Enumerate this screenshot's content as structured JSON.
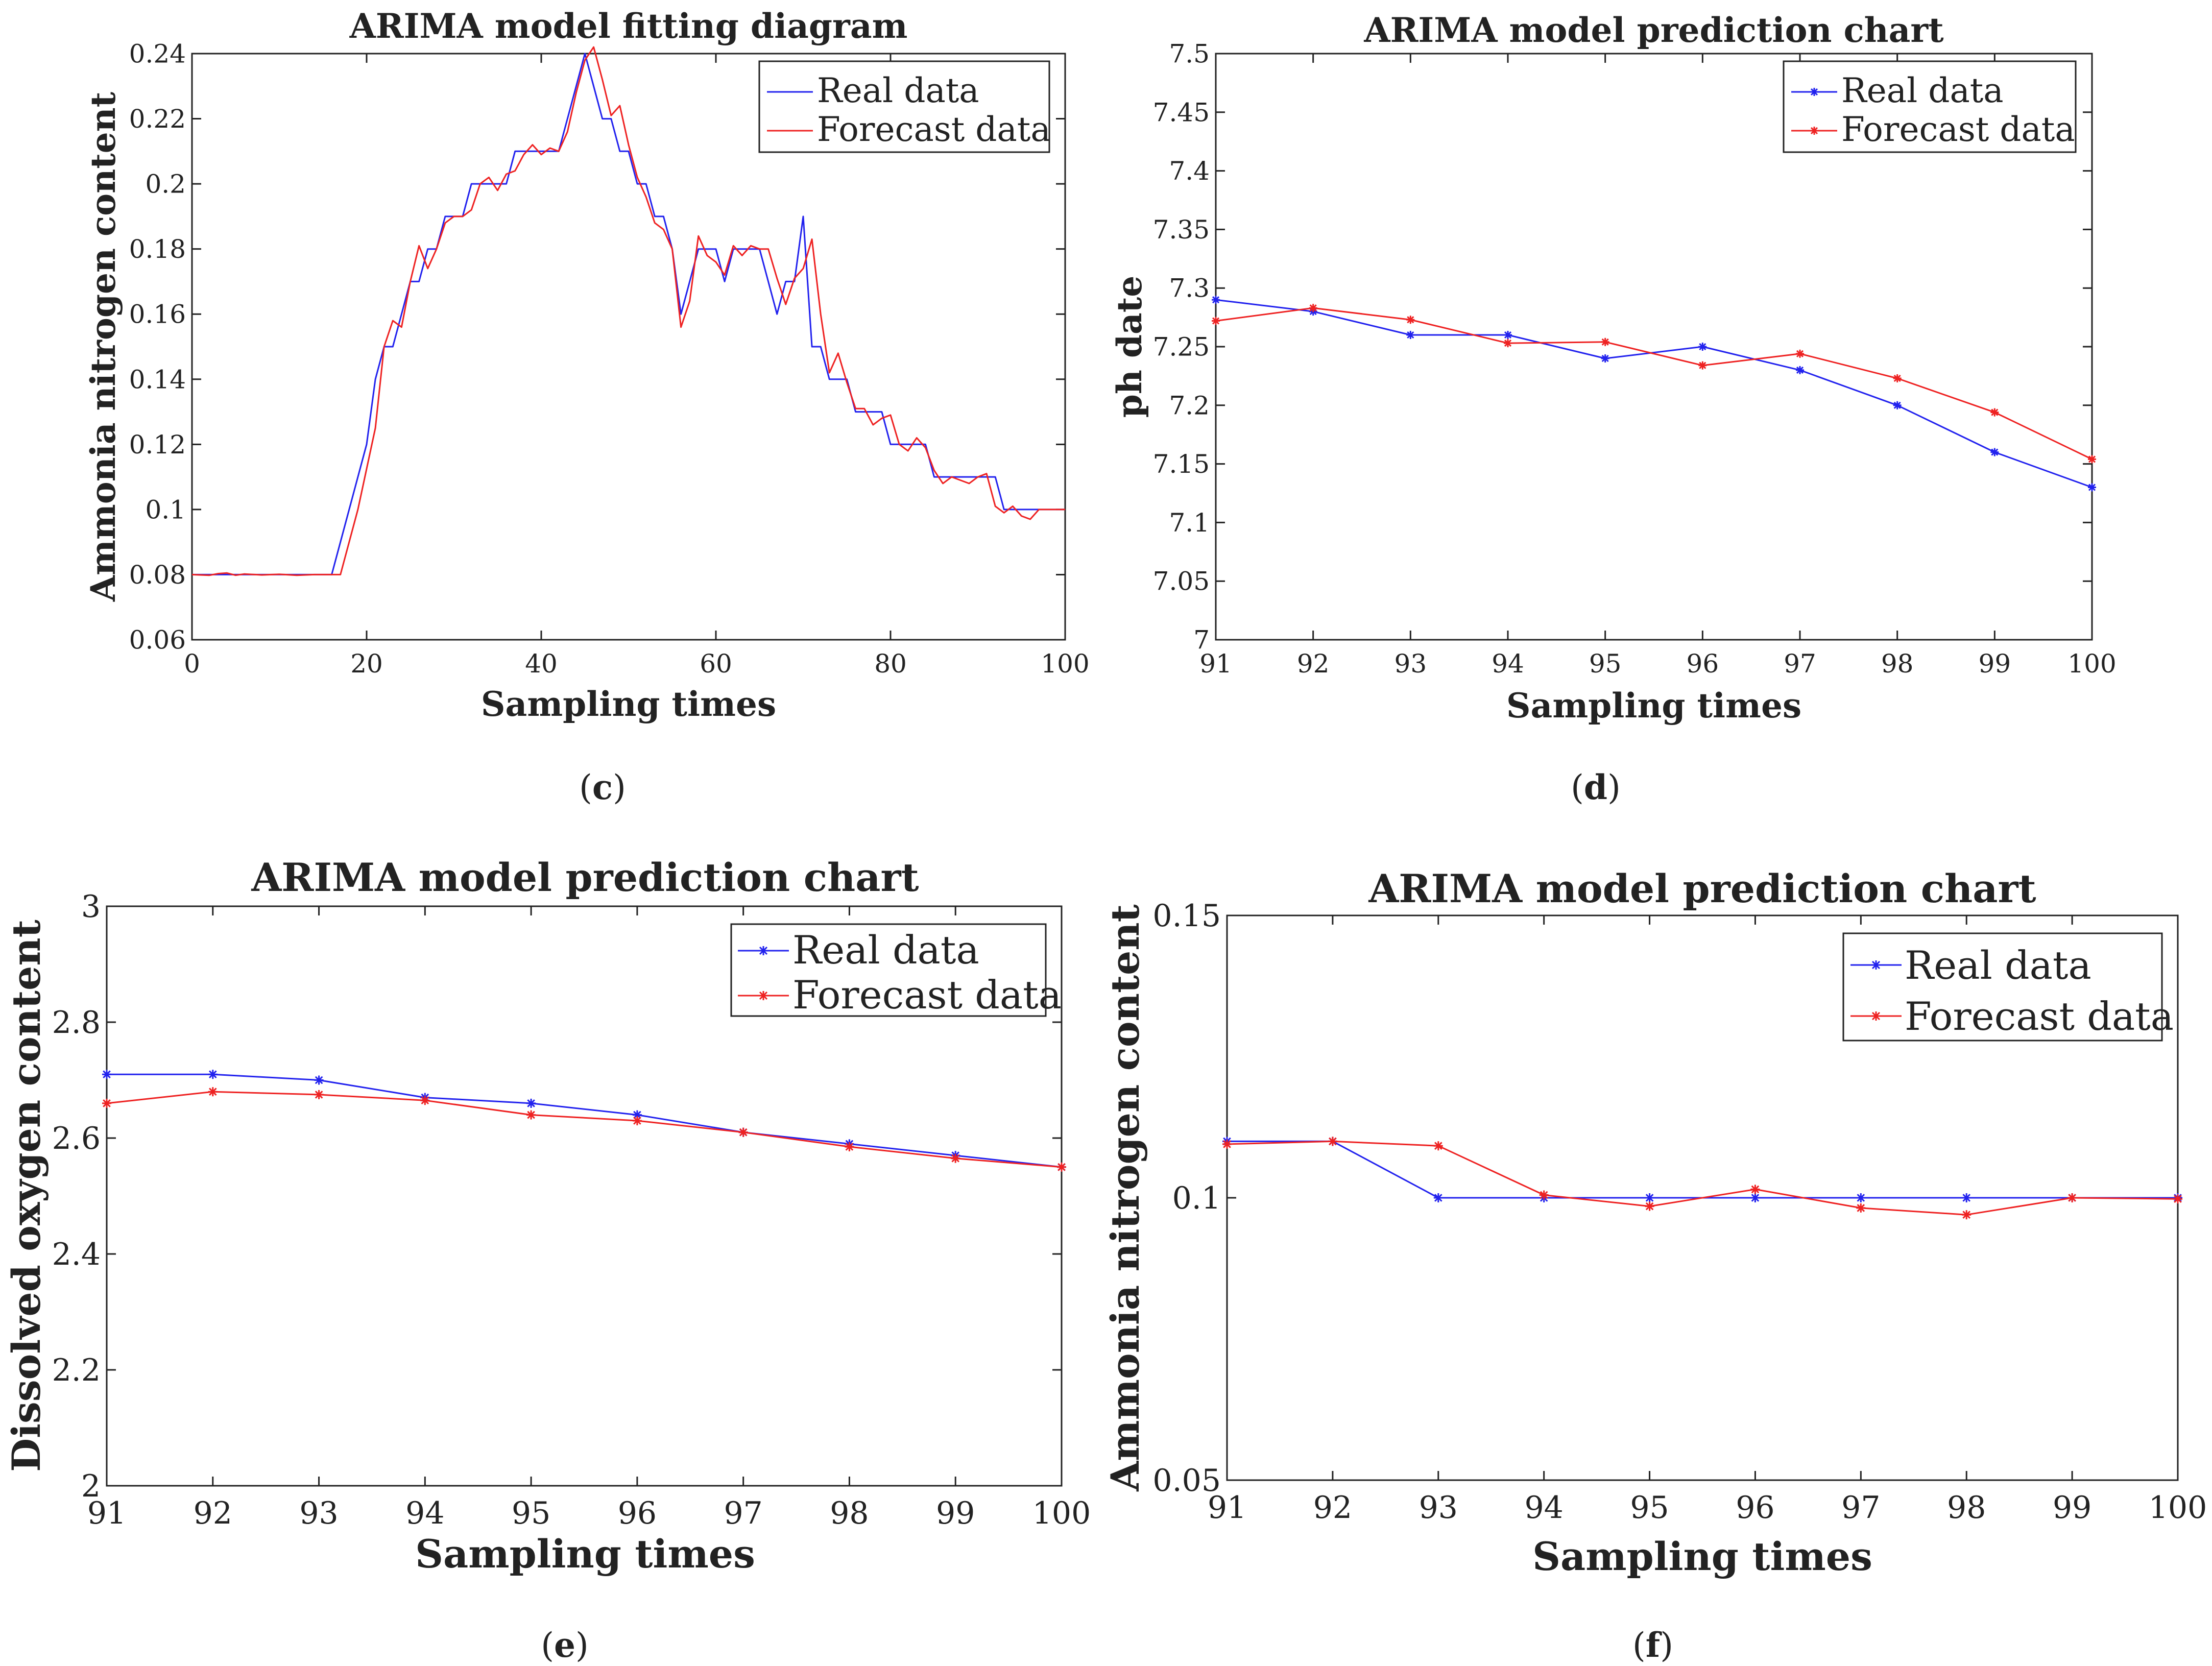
{
  "colors": {
    "real": "#2222ee",
    "forecast": "#ee2222",
    "axis": "#222222",
    "background": "#ffffff"
  },
  "chart_data": [
    {
      "panel": "c",
      "type": "line",
      "title": "ARIMA model fitting diagram",
      "xlabel": "Sampling times",
      "ylabel": "Ammonia nitrogen content",
      "xlim": [
        0,
        100
      ],
      "ylim": [
        0.06,
        0.24
      ],
      "xticks": [
        0,
        20,
        40,
        60,
        80,
        100
      ],
      "yticks": [
        0.06,
        0.08,
        0.1,
        0.12,
        0.14,
        0.16,
        0.18,
        0.2,
        0.22,
        0.24
      ],
      "ytick_labels": [
        "0.06",
        "0.08",
        "0.1",
        "0.12",
        "0.14",
        "0.16",
        "0.18",
        "0.2",
        "0.22",
        "0.24"
      ],
      "legend": "top-right",
      "markers": false,
      "series": [
        {
          "name": "Real data",
          "color": "#2222ee",
          "x": [
            0,
            2,
            3,
            4,
            5,
            6,
            8,
            10,
            12,
            14,
            16,
            18,
            20,
            21,
            22,
            23,
            24,
            25,
            26,
            27,
            28,
            29,
            30,
            31,
            32,
            33,
            34,
            35,
            36,
            37,
            38,
            39,
            40,
            41,
            42,
            43,
            44,
            45,
            46,
            47,
            48,
            49,
            50,
            51,
            52,
            53,
            54,
            55,
            56,
            57,
            58,
            59,
            60,
            61,
            62,
            63,
            64,
            65,
            66,
            67,
            68,
            69,
            70,
            71,
            72,
            73,
            74,
            75,
            76,
            77,
            78,
            79,
            80,
            81,
            82,
            83,
            84,
            85,
            86,
            87,
            88,
            89,
            90,
            91,
            92,
            93,
            94,
            95,
            96,
            97,
            98,
            99,
            100
          ],
          "y": [
            0.08,
            0.08,
            0.08,
            0.08,
            0.08,
            0.08,
            0.08,
            0.08,
            0.08,
            0.08,
            0.08,
            0.1,
            0.12,
            0.14,
            0.15,
            0.15,
            0.16,
            0.17,
            0.17,
            0.18,
            0.18,
            0.19,
            0.19,
            0.19,
            0.2,
            0.2,
            0.2,
            0.2,
            0.2,
            0.21,
            0.21,
            0.21,
            0.21,
            0.21,
            0.21,
            0.22,
            0.23,
            0.24,
            0.23,
            0.22,
            0.22,
            0.21,
            0.21,
            0.2,
            0.2,
            0.19,
            0.19,
            0.18,
            0.16,
            0.17,
            0.18,
            0.18,
            0.18,
            0.17,
            0.18,
            0.18,
            0.18,
            0.18,
            0.17,
            0.16,
            0.17,
            0.17,
            0.19,
            0.15,
            0.15,
            0.14,
            0.14,
            0.14,
            0.13,
            0.13,
            0.13,
            0.13,
            0.12,
            0.12,
            0.12,
            0.12,
            0.12,
            0.11,
            0.11,
            0.11,
            0.11,
            0.11,
            0.11,
            0.11,
            0.11,
            0.1,
            0.1,
            0.1,
            0.1,
            0.1,
            0.1,
            0.1,
            0.1
          ]
        },
        {
          "name": "Forecast data",
          "color": "#ee2222",
          "x": [
            0,
            2,
            3,
            4,
            5,
            6,
            8,
            10,
            12,
            14,
            17,
            19,
            21,
            22,
            23,
            24,
            25,
            26,
            27,
            28,
            29,
            30,
            31,
            32,
            33,
            34,
            35,
            36,
            37,
            38,
            39,
            40,
            41,
            42,
            43,
            44,
            45,
            46,
            47,
            48,
            49,
            50,
            51,
            52,
            53,
            54,
            55,
            56,
            57,
            58,
            59,
            60,
            61,
            62,
            63,
            64,
            65,
            66,
            67,
            68,
            69,
            70,
            71,
            72,
            73,
            74,
            75,
            76,
            77,
            78,
            79,
            80,
            81,
            82,
            83,
            84,
            85,
            86,
            87,
            88,
            89,
            90,
            91,
            92,
            93,
            94,
            95,
            96,
            97,
            98,
            99,
            100
          ],
          "y": [
            0.08,
            0.0798,
            0.0803,
            0.0805,
            0.0798,
            0.0802,
            0.0799,
            0.0801,
            0.0798,
            0.08,
            0.08,
            0.1,
            0.125,
            0.15,
            0.158,
            0.156,
            0.17,
            0.181,
            0.174,
            0.18,
            0.188,
            0.19,
            0.19,
            0.192,
            0.2,
            0.202,
            0.198,
            0.203,
            0.204,
            0.209,
            0.212,
            0.209,
            0.211,
            0.21,
            0.216,
            0.228,
            0.238,
            0.242,
            0.232,
            0.221,
            0.224,
            0.212,
            0.202,
            0.196,
            0.188,
            0.186,
            0.18,
            0.156,
            0.164,
            0.184,
            0.178,
            0.176,
            0.172,
            0.181,
            0.178,
            0.181,
            0.18,
            0.18,
            0.171,
            0.163,
            0.171,
            0.174,
            0.183,
            0.16,
            0.142,
            0.148,
            0.139,
            0.131,
            0.131,
            0.126,
            0.128,
            0.129,
            0.12,
            0.118,
            0.122,
            0.119,
            0.112,
            0.108,
            0.11,
            0.109,
            0.108,
            0.11,
            0.111,
            0.101,
            0.099,
            0.101,
            0.098,
            0.097,
            0.1,
            0.1,
            0.1,
            0.1
          ]
        }
      ]
    },
    {
      "panel": "d",
      "type": "line",
      "title": "ARIMA model prediction chart",
      "xlabel": "Sampling times",
      "ylabel": "ph date",
      "xlim": [
        91,
        100
      ],
      "ylim": [
        7,
        7.5
      ],
      "xticks": [
        91,
        92,
        93,
        94,
        95,
        96,
        97,
        98,
        99,
        100
      ],
      "yticks": [
        7,
        7.05,
        7.1,
        7.15,
        7.2,
        7.25,
        7.3,
        7.35,
        7.4,
        7.45,
        7.5
      ],
      "ytick_labels": [
        "7",
        "7.05",
        "7.1",
        "7.15",
        "7.2",
        "7.25",
        "7.3",
        "7.35",
        "7.4",
        "7.45",
        "7.5"
      ],
      "legend": "top-right",
      "markers": true,
      "series": [
        {
          "name": "Real data",
          "color": "#2222ee",
          "x": [
            91,
            92,
            93,
            94,
            95,
            96,
            97,
            98,
            99,
            100
          ],
          "y": [
            7.29,
            7.28,
            7.26,
            7.26,
            7.24,
            7.25,
            7.23,
            7.2,
            7.16,
            7.13
          ]
        },
        {
          "name": "Forecast data",
          "color": "#ee2222",
          "x": [
            91,
            92,
            93,
            94,
            95,
            96,
            97,
            98,
            99,
            100
          ],
          "y": [
            7.272,
            7.283,
            7.273,
            7.253,
            7.254,
            7.234,
            7.244,
            7.223,
            7.194,
            7.154
          ]
        }
      ]
    },
    {
      "panel": "e",
      "type": "line",
      "title": "ARIMA model prediction chart",
      "xlabel": "Sampling times",
      "ylabel": "Dissolved oxygen content",
      "xlim": [
        91,
        100
      ],
      "ylim": [
        2,
        3
      ],
      "xticks": [
        91,
        92,
        93,
        94,
        95,
        96,
        97,
        98,
        99,
        100
      ],
      "yticks": [
        2,
        2.2,
        2.4,
        2.6,
        2.8,
        3
      ],
      "ytick_labels": [
        "2",
        "2.2",
        "2.4",
        "2.6",
        "2.8",
        "3"
      ],
      "legend": "top-right",
      "markers": true,
      "series": [
        {
          "name": "Real data",
          "color": "#2222ee",
          "x": [
            91,
            92,
            93,
            94,
            95,
            96,
            97,
            98,
            99,
            100
          ],
          "y": [
            2.71,
            2.71,
            2.7,
            2.67,
            2.66,
            2.64,
            2.61,
            2.59,
            2.57,
            2.55
          ]
        },
        {
          "name": "Forecast data",
          "color": "#ee2222",
          "x": [
            91,
            92,
            93,
            94,
            95,
            96,
            97,
            98,
            99,
            100
          ],
          "y": [
            2.66,
            2.68,
            2.675,
            2.665,
            2.64,
            2.63,
            2.61,
            2.585,
            2.565,
            2.55
          ]
        }
      ]
    },
    {
      "panel": "f",
      "type": "line",
      "title": "ARIMA model prediction chart",
      "xlabel": "Sampling times",
      "ylabel": "Ammonia nitrogen content",
      "xlim": [
        91,
        100
      ],
      "ylim": [
        0.05,
        0.15
      ],
      "xticks": [
        91,
        92,
        93,
        94,
        95,
        96,
        97,
        98,
        99,
        100
      ],
      "yticks": [
        0.05,
        0.1,
        0.15
      ],
      "ytick_labels": [
        "0.05",
        "0.1",
        "0.15"
      ],
      "legend": "top-right",
      "markers": true,
      "series": [
        {
          "name": "Real data",
          "color": "#2222ee",
          "x": [
            91,
            92,
            93,
            94,
            95,
            96,
            97,
            98,
            99,
            100
          ],
          "y": [
            0.11,
            0.11,
            0.1,
            0.1,
            0.1,
            0.1,
            0.1,
            0.1,
            0.1,
            0.1
          ]
        },
        {
          "name": "Forecast data",
          "color": "#ee2222",
          "x": [
            91,
            92,
            93,
            94,
            95,
            96,
            97,
            98,
            99,
            100
          ],
          "y": [
            0.1095,
            0.11,
            0.1092,
            0.1005,
            0.0985,
            0.1015,
            0.0982,
            0.097,
            0.1,
            0.0998
          ]
        }
      ]
    }
  ]
}
